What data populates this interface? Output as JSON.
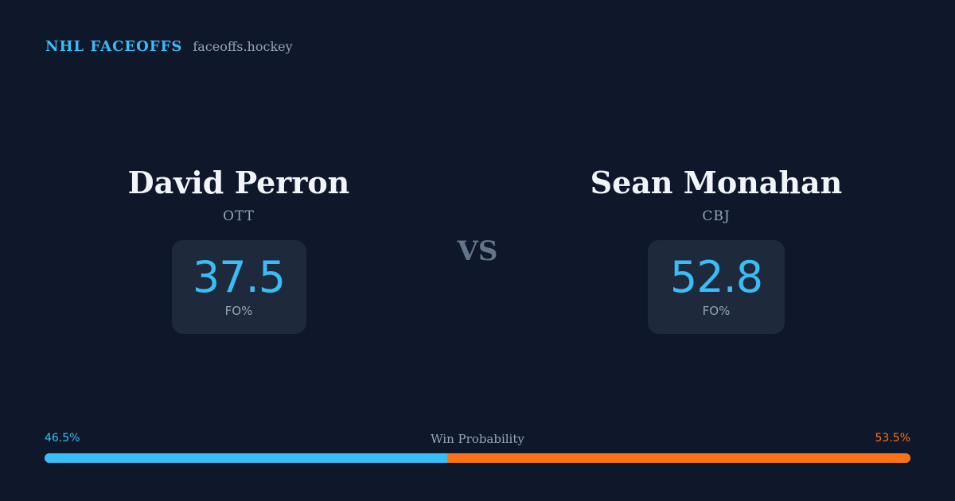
{
  "brand": {
    "name": "NHL FACEOFFS",
    "site": "faceoffs.hockey"
  },
  "players": [
    {
      "name": "David Perron",
      "team": "OTT",
      "stat_value": "37.5",
      "stat_label": "FO%"
    },
    {
      "name": "Sean Monahan",
      "team": "CBJ",
      "stat_value": "52.8",
      "stat_label": "FO%"
    }
  ],
  "vs_label": "VS",
  "win_probability": {
    "title": "Win Probability",
    "left_label": "46.5%",
    "right_label": "53.5%",
    "left_value": 0.465,
    "right_value": 0.535
  },
  "colors": {
    "background": "#0f172a",
    "accent": "#38bdf8",
    "opponent": "#f97316",
    "card": "#1e293b"
  }
}
